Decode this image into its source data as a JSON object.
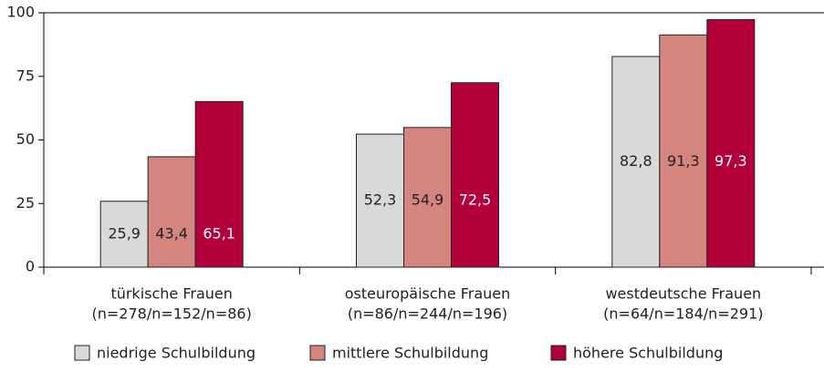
{
  "chart_data": {
    "type": "bar",
    "categories": [
      "türkische Frauen",
      "osteuropäische Frauen",
      "westdeutsche Frauen"
    ],
    "category_sublabels": [
      "(n=278/n=152/n=86)",
      "(n=86/n=244/n=196)",
      "(n=64/n=184/n=291)"
    ],
    "series": [
      {
        "name": "niedrige Schulbildung",
        "color": "#d9d9d9",
        "values": [
          25.9,
          52.3,
          82.8
        ],
        "value_labels": [
          "25,9",
          "52,3",
          "82,8"
        ]
      },
      {
        "name": "mittlere Schulbildung",
        "color": "#d5857f",
        "values": [
          43.4,
          54.9,
          91.3
        ],
        "value_labels": [
          "43,4",
          "54,9",
          "91,3"
        ]
      },
      {
        "name": "höhere Schulbildung",
        "color": "#b3003a",
        "values": [
          65.1,
          72.5,
          97.3
        ],
        "value_labels": [
          "65,1",
          "72,5",
          "97,3"
        ]
      }
    ],
    "ylim": [
      0,
      100
    ],
    "yticks": [
      0,
      25,
      50,
      75,
      100
    ],
    "legend": "bottom"
  }
}
